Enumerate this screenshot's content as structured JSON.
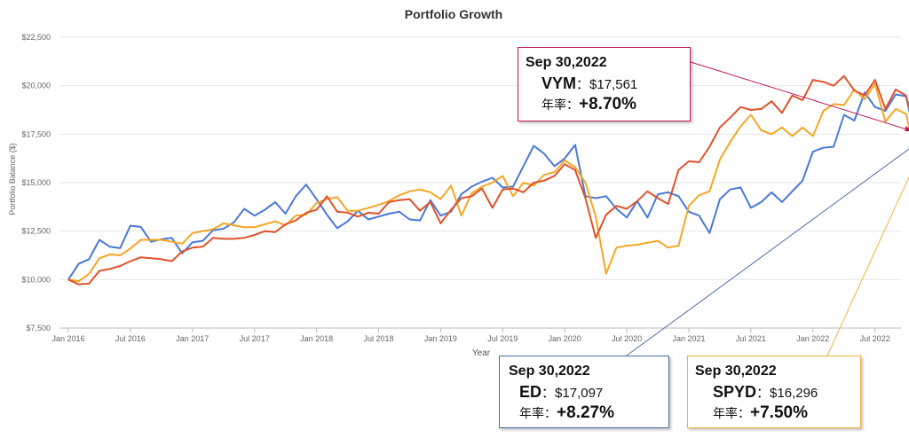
{
  "chart_data": {
    "type": "line",
    "title": "Portfolio Growth",
    "xlabel": "Year",
    "ylabel": "Portfolio Balance ($)",
    "ylim": [
      7500,
      22500
    ],
    "y_ticks": [
      "$7,500",
      "$10,000",
      "$12,500",
      "$15,000",
      "$17,500",
      "$20,000",
      "$22,500"
    ],
    "y_tick_values": [
      7500,
      10000,
      12500,
      15000,
      17500,
      20000,
      22500
    ],
    "x_ticks": [
      "Jan 2016",
      "Jul 2016",
      "Jan 2017",
      "Jul 2017",
      "Jan 2018",
      "Jul 2018",
      "Jan 2019",
      "Jul 2019",
      "Jan 2020",
      "Jul 2020",
      "Jan 2021",
      "Jul 2021",
      "Jan 2022",
      "Jul 2022"
    ],
    "x_start": "2016-01",
    "x_end": "2022-09",
    "grid": true,
    "series": [
      {
        "color": "#4a78d8",
        "values": [
          10000,
          10820,
          11050,
          12050,
          11700,
          11620,
          12780,
          12720,
          11950,
          12080,
          12150,
          11350,
          11920,
          12000,
          12550,
          12620,
          12950,
          13650,
          13300,
          13600,
          14000,
          13400,
          14300,
          14900,
          14150,
          13350,
          12650,
          13000,
          13550,
          13100,
          13250,
          13400,
          13500,
          13100,
          13050,
          14100,
          13300,
          13500,
          14400,
          14800,
          15050,
          15250,
          14750,
          14800,
          15850,
          16900,
          16500,
          15850,
          16250,
          16950,
          14300,
          14200,
          14300,
          13650,
          13200,
          14050,
          13200,
          14400,
          14500,
          14300,
          13500,
          13300,
          12400,
          14150,
          14650,
          14750,
          13700,
          14000,
          14500,
          14000,
          14550,
          15100,
          16600,
          16800,
          16850,
          18500,
          18200,
          19650,
          18900,
          18700,
          19550,
          19450,
          17097
        ]
      },
      {
        "color": "#f5a623",
        "values": [
          10000,
          9920,
          10300,
          11100,
          11300,
          11250,
          11600,
          12050,
          12050,
          12050,
          11950,
          11850,
          12400,
          12500,
          12600,
          12900,
          12800,
          12700,
          12700,
          12850,
          13000,
          12800,
          13300,
          13350,
          13950,
          14150,
          14250,
          13550,
          13550,
          13700,
          13850,
          14050,
          14350,
          14550,
          14650,
          14500,
          14150,
          14850,
          13300,
          14450,
          14800,
          15000,
          15350,
          14300,
          15000,
          14850,
          15400,
          15550,
          16150,
          15800,
          15000,
          13250,
          10300,
          11650,
          11750,
          11800,
          11900,
          12000,
          11650,
          11750,
          13800,
          14350,
          14550,
          16200,
          17100,
          17900,
          18500,
          17700,
          17500,
          17850,
          17400,
          17850,
          17400,
          18700,
          19050,
          19000,
          19800,
          19300,
          20100,
          18150,
          18800,
          18550,
          16296
        ]
      },
      {
        "color": "#e0522a",
        "values": [
          10000,
          9750,
          9800,
          10450,
          10550,
          10700,
          10950,
          11150,
          11100,
          11050,
          10950,
          11450,
          11650,
          11700,
          12150,
          12100,
          12100,
          12150,
          12300,
          12500,
          12450,
          12850,
          13050,
          13450,
          13600,
          14300,
          13500,
          13450,
          13250,
          13450,
          13400,
          14000,
          14100,
          14150,
          13550,
          14000,
          12900,
          13600,
          14200,
          14300,
          14700,
          13700,
          14650,
          14700,
          14500,
          15000,
          15100,
          15350,
          15950,
          15650,
          14200,
          12150,
          13350,
          13800,
          13650,
          14050,
          14550,
          14200,
          13900,
          15650,
          16100,
          16050,
          16850,
          17850,
          18350,
          18900,
          18750,
          18800,
          19200,
          18600,
          19500,
          19250,
          20300,
          20200,
          20000,
          20500,
          19750,
          19500,
          20300,
          18800,
          19800,
          19500,
          17561
        ]
      }
    ],
    "callouts": [
      {
        "date": "Sep 30,2022",
        "ticker": "VYM",
        "value": "$17,561",
        "rate_label": "年率：",
        "rate": "+8.70%",
        "color": "#c2185b"
      },
      {
        "date": "Sep 30,2022",
        "ticker": "ED",
        "value": "$17,097",
        "rate_label": "年率：",
        "rate": "+8.27%",
        "color": "#4a6fa5"
      },
      {
        "date": "Sep 30,2022",
        "ticker": "SPYD",
        "value": "$16,296",
        "rate_label": "年率：",
        "rate": "+7.50%",
        "color": "#f0b33a"
      }
    ]
  }
}
